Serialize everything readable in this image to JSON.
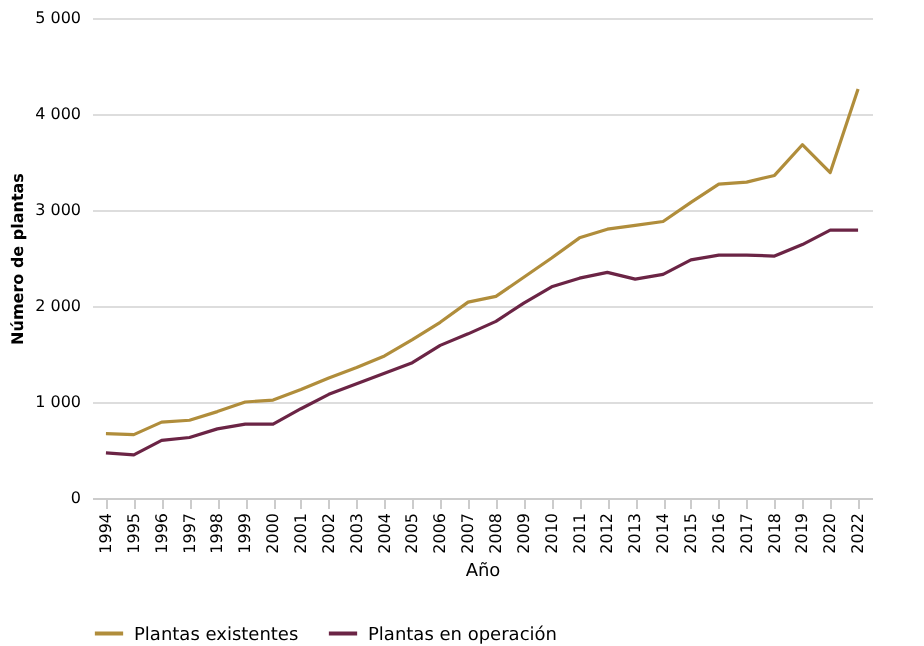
{
  "chart_data": {
    "type": "line",
    "xlabel": "Año",
    "ylabel": "Número de plantas",
    "categories": [
      "1994",
      "1995",
      "1996",
      "1997",
      "1998",
      "1999",
      "2000",
      "2001",
      "2002",
      "2003",
      "2004",
      "2005",
      "2006",
      "2007",
      "2008",
      "2009",
      "2010",
      "2011",
      "2012",
      "2013",
      "2014",
      "2015",
      "2016",
      "2017",
      "2018",
      "2019",
      "2020",
      "2022"
    ],
    "series": [
      {
        "name": "Plantas existentes",
        "color": "#b08d3b",
        "values": [
          670,
          660,
          790,
          810,
          900,
          1000,
          1020,
          1130,
          1250,
          1360,
          1480,
          1650,
          1830,
          2040,
          2100,
          2300,
          2500,
          2710,
          2800,
          2840,
          2880,
          3080,
          3270,
          3290,
          3360,
          3680,
          3390,
          4260
        ]
      },
      {
        "name": "Plantas en operación",
        "color": "#6b2445",
        "values": [
          470,
          450,
          600,
          630,
          720,
          770,
          770,
          930,
          1080,
          1190,
          1300,
          1410,
          1590,
          1710,
          1840,
          2030,
          2200,
          2290,
          2350,
          2280,
          2330,
          2480,
          2530,
          2530,
          2520,
          2640,
          2790,
          2790
        ]
      }
    ],
    "ylim": [
      0,
      5000
    ],
    "yticks": [
      0,
      {
        "value": 1000,
        "label": "1 000"
      },
      {
        "value": 2000,
        "label": "2 000"
      },
      {
        "value": 3000,
        "label": "3 000"
      },
      {
        "value": 4000,
        "label": "4 000"
      },
      {
        "value": 5000,
        "label": "5 000"
      }
    ],
    "grid": "y",
    "legend": "bottom",
    "marker": "none",
    "line_style": "solid"
  }
}
